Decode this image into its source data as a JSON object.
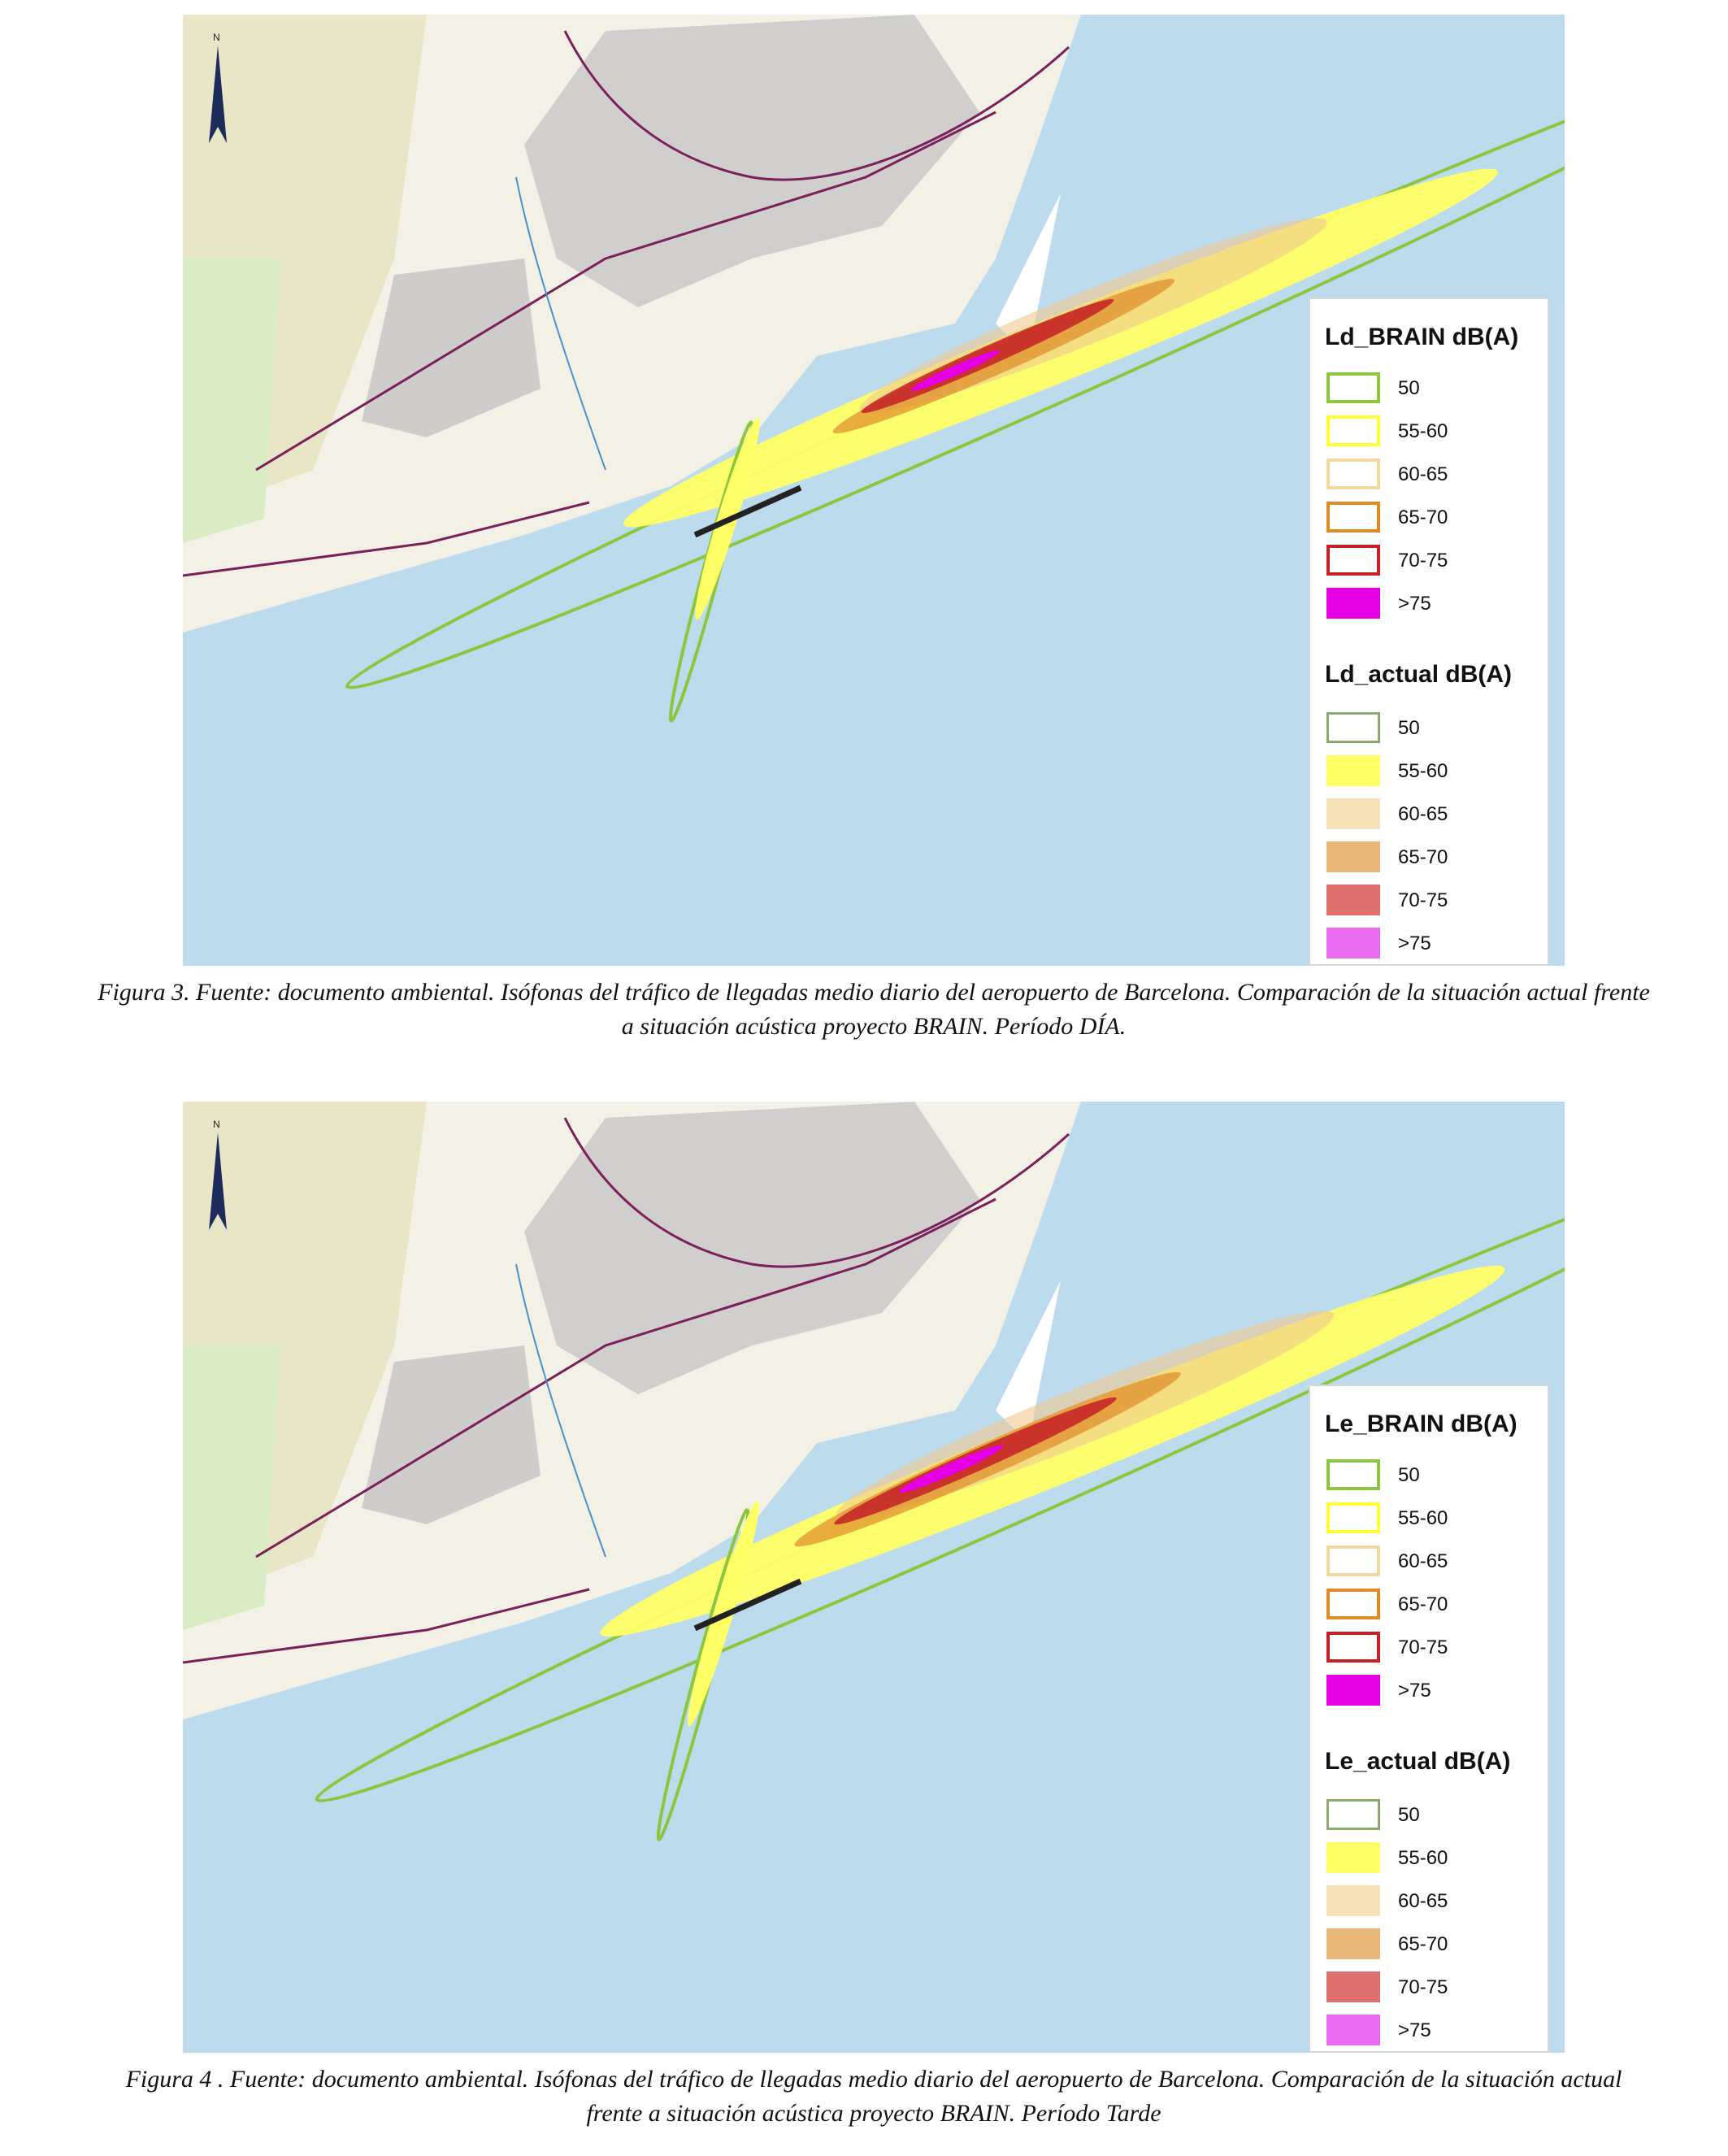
{
  "figures": [
    {
      "legend_brain_title": "Ld_BRAIN dB(A)",
      "legend_actual_title": "Ld_actual dB(A)",
      "caption_line1": "Figura 3. Fuente: documento ambiental. Isófonas del tráfico de llegadas medio diario del aeropuerto de Barcelona. Comparación de la situación actual frente",
      "caption_line2": "a situación acústica proyecto BRAIN. Período DÍA."
    },
    {
      "legend_brain_title": "Le_BRAIN dB(A)",
      "legend_actual_title": "Le_actual dB(A)",
      "caption_line1": "Figura 4 . Fuente: documento ambiental. Isófonas del tráfico de llegadas medio diario del aeropuerto de Barcelona. Comparación de la situación actual",
      "caption_line2": "frente a situación acústica proyecto BRAIN. Período Tarde"
    }
  ],
  "legend_classes": [
    "50",
    "55-60",
    "60-65",
    "65-70",
    "70-75",
    ">75"
  ],
  "north_label": "N",
  "colors": {
    "sea": "#bcdcee",
    "land": "#f3f1e6",
    "urban": "#b8b8b8",
    "brain_50": "#8cc63f",
    "brain_55_60": "#ffff33",
    "brain_60_65": "#f0d9a0",
    "brain_65_70": "#e08a28",
    "brain_70_75": "#c42026",
    "brain_gt75": "#e600e6",
    "actual_50": "#8fa870",
    "actual_55_60": "#ffff66",
    "actual_60_65": "#f5e2b8",
    "actual_65_70": "#eab77a",
    "actual_70_75": "#e07070",
    "actual_gt75": "#e86aee"
  }
}
